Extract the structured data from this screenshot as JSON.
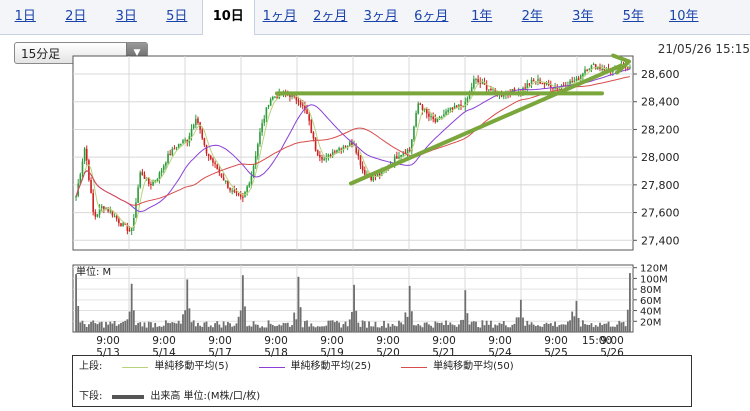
{
  "tabs": [
    {
      "label": "1日",
      "active": false
    },
    {
      "label": "2日",
      "active": false
    },
    {
      "label": "3日",
      "active": false
    },
    {
      "label": "5日",
      "active": false
    },
    {
      "label": "10日",
      "active": true
    },
    {
      "label": "1ヶ月",
      "active": false
    },
    {
      "label": "2ヶ月",
      "active": false
    },
    {
      "label": "3ヶ月",
      "active": false
    },
    {
      "label": "6ヶ月",
      "active": false
    },
    {
      "label": "1年",
      "active": false
    },
    {
      "label": "2年",
      "active": false
    },
    {
      "label": "3年",
      "active": false
    },
    {
      "label": "5年",
      "active": false
    },
    {
      "label": "10年",
      "active": false
    }
  ],
  "interval_select": {
    "value": "15分足"
  },
  "datetime": "21/05/26 15:15",
  "colors": {
    "ma5": "#b8d27a",
    "ma25": "#8a3fd6",
    "ma50": "#d84c4c",
    "candle_up": "#2e9b3a",
    "candle_down": "#cc2222",
    "trend": "#7aa63c",
    "volume": "#6e6e6e"
  },
  "chart_data": [
    {
      "type": "candlestick",
      "y_ticks": [
        "28,600",
        "28,400",
        "28,200",
        "28,000",
        "27,800",
        "27,600",
        "27,400"
      ],
      "y_tick_values": [
        28600,
        28400,
        28200,
        28000,
        27800,
        27600,
        27400
      ],
      "ylim": [
        27330,
        28730
      ],
      "days": [
        "5/13",
        "5/14",
        "5/17",
        "5/18",
        "5/19",
        "5/20",
        "5/21",
        "5/24",
        "5/25",
        "5/26"
      ],
      "x_tick_times": [
        "9:00",
        "9:00",
        "9:00",
        "9:00",
        "9:00",
        "9:00",
        "9:00",
        "9:00",
        "9:00",
        "9:00",
        "15:00"
      ],
      "x_tick_dates": [
        "5/13",
        "5/14",
        "5/17",
        "5/18",
        "5/19",
        "5/20",
        "5/21",
        "5/24",
        "5/25",
        "5/26",
        ""
      ],
      "daily_path": [
        [
          27720,
          28080,
          27560,
          27650,
          27600,
          27520,
          27470
        ],
        [
          27470,
          27900,
          27800,
          27860,
          28000,
          28080,
          28120
        ],
        [
          28120,
          28300,
          28050,
          27950,
          27850,
          27750,
          27700
        ],
        [
          27700,
          27880,
          28200,
          28420,
          28450,
          28460,
          28420
        ],
        [
          28420,
          28300,
          28040,
          27980,
          28050,
          28080,
          28100
        ],
        [
          28100,
          27900,
          27850,
          27880,
          27950,
          28020,
          28050
        ],
        [
          28050,
          28400,
          28300,
          28250,
          28320,
          28350,
          28380
        ],
        [
          28380,
          28560,
          28520,
          28480,
          28450,
          28470,
          28480
        ],
        [
          28480,
          28540,
          28550,
          28520,
          28500,
          28530,
          28550
        ],
        [
          28550,
          28640,
          28660,
          28640,
          28620,
          28650,
          28660
        ]
      ],
      "series": [
        {
          "name": "単純移動平均(5)",
          "role": "ma5"
        },
        {
          "name": "単純移動平均(25)",
          "role": "ma25"
        },
        {
          "name": "単純移動平均(50)",
          "role": "ma50"
        }
      ],
      "annotations": [
        {
          "type": "horizontal_line",
          "y": 28460
        },
        {
          "type": "trend_line",
          "y_start": 27810,
          "y_end": 28690
        }
      ]
    },
    {
      "type": "bar",
      "unit_label": "単位: M",
      "y_ticks": [
        "120M",
        "100M",
        "80M",
        "60M",
        "40M",
        "20M"
      ],
      "y_tick_values": [
        120,
        100,
        80,
        60,
        40,
        20
      ],
      "ylim": [
        0,
        125
      ],
      "day_open_volumes": [
        108,
        90,
        98,
        106,
        103,
        88,
        86,
        78,
        60,
        58
      ],
      "close_volume": 110
    }
  ],
  "legend": {
    "upper_label": "上段:",
    "lower_label": "下段:",
    "items": [
      {
        "label": "単純移動平均(5)"
      },
      {
        "label": "単純移動平均(25)"
      },
      {
        "label": "単純移動平均(50)"
      }
    ],
    "volume_label": "出来高 単位:(M株/口/枚)"
  }
}
